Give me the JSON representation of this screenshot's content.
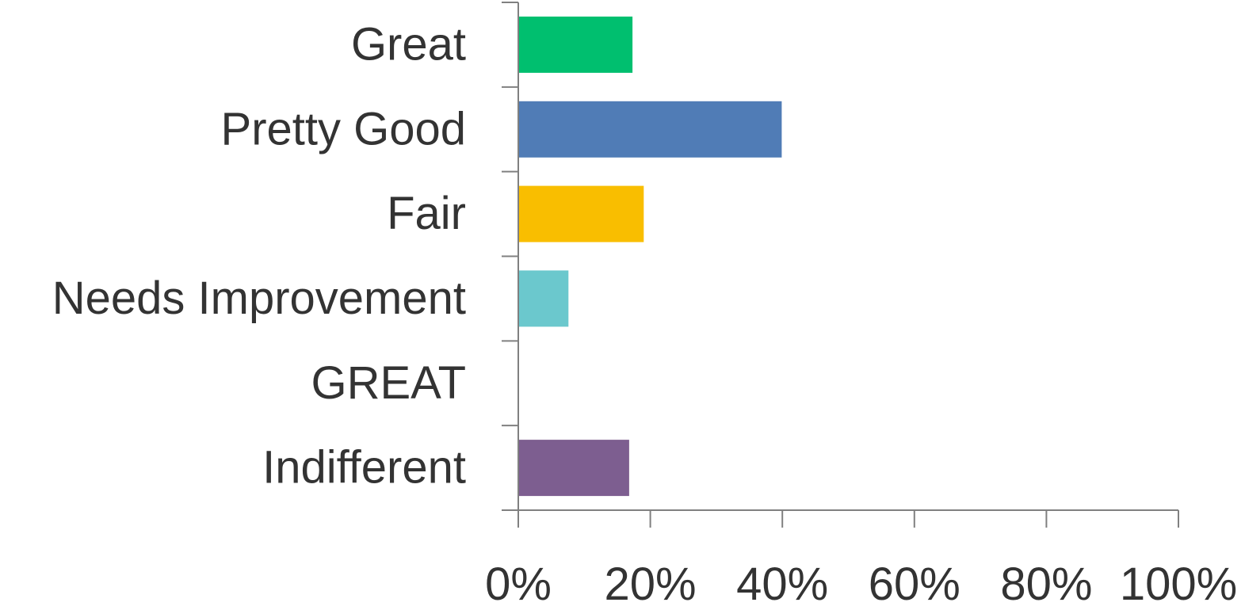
{
  "chart_data": {
    "type": "bar",
    "orientation": "horizontal",
    "title": "",
    "xlabel": "",
    "ylabel": "",
    "categories": [
      "Great",
      "Pretty Good",
      "Fair",
      "Needs Improvement",
      "GREAT",
      "Indifferent"
    ],
    "values": [
      17.3,
      39.9,
      19.0,
      7.6,
      0,
      16.8
    ],
    "colors": [
      "#00BF6F",
      "#507CB6",
      "#F9BE00",
      "#6BC8CD",
      "#00BF6F",
      "#7D5E90"
    ],
    "xlim": [
      0,
      100
    ],
    "x_ticks": [
      "0%",
      "20%",
      "40%",
      "60%",
      "80%",
      "100%"
    ],
    "x_tick_values": [
      0,
      20,
      40,
      60,
      80,
      100
    ],
    "grid": false,
    "legend": "none",
    "axis_color": "#808080"
  }
}
